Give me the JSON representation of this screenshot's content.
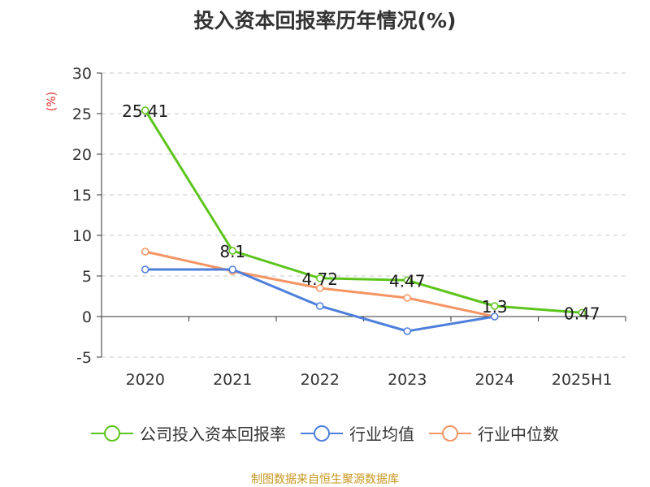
{
  "chart_data": {
    "type": "line",
    "title": "投入资本回报率历年情况(%)",
    "ylabel": "(%)",
    "xlabel": "",
    "categories": [
      "2020",
      "2021",
      "2022",
      "2023",
      "2024",
      "2025H1"
    ],
    "ylim": [
      -5,
      30
    ],
    "yticks": [
      -5,
      0,
      5,
      10,
      15,
      20,
      25,
      30
    ],
    "grid": "horizontal dashed",
    "legend_position": "bottom",
    "series": [
      {
        "name": "公司投入资本回报率",
        "color": "#5cc41c",
        "values": [
          25.41,
          8.1,
          4.72,
          4.47,
          1.3,
          0.47
        ],
        "labels": [
          "25.41",
          "8.1",
          "4.72",
          "4.47",
          "1.3",
          "0.47"
        ]
      },
      {
        "name": "行业均值",
        "color": "#4e7fdc",
        "values": [
          5.8,
          5.8,
          1.3,
          -1.8,
          0.0,
          null
        ]
      },
      {
        "name": "行业中位数",
        "color": "#f59563",
        "values": [
          8.0,
          5.6,
          3.5,
          2.3,
          0.0,
          null
        ]
      }
    ]
  },
  "source_note": "制图数据来自恒生聚源数据库"
}
